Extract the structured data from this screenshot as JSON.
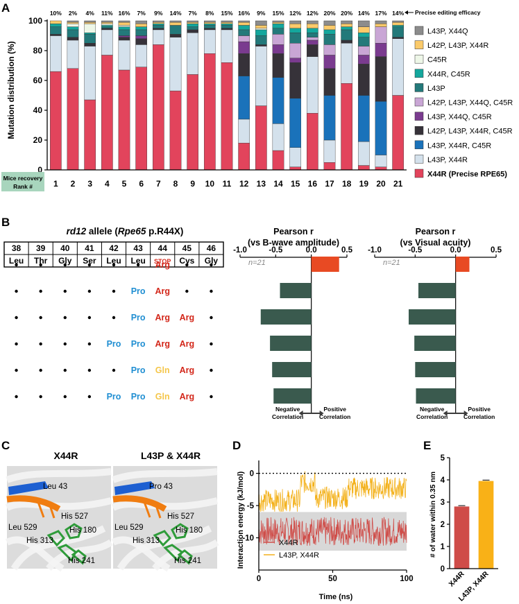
{
  "panel_letters": {
    "a": "A",
    "b": "B",
    "c": "C",
    "d": "D",
    "e": "E"
  },
  "colors": {
    "x44r": "#e2445c",
    "l43p_x44r": "#d4e1ec",
    "l43p_x44r_c45r": "#1a72ba",
    "l42p_l43p_x44r_c45r": "#363239",
    "l43p_x44q_c45r": "#7a3b8f",
    "l42p_l43p_x44q_c45r": "#c9a6d5",
    "l43p": "#23797a",
    "x44r_c45r": "#14a79d",
    "c45r": "#eef7e8",
    "l42p_l43p_x44r": "#fbca6a",
    "l43p_x44q": "#8c8c8c",
    "pos_bar": "#e84a23",
    "neg_bar": "#3a5a4e",
    "arg": "#d3271a",
    "pro": "#1f8ed2",
    "gln": "#f5c64a",
    "md_x44r": "#cf4c48",
    "md_l43p": "#f3b11b",
    "water_x44r": "#cf4c48",
    "water_l43p": "#f9b117",
    "rank_bg": "#a8d5bd"
  },
  "panelA": {
    "chart_data": {
      "type": "bar",
      "stacked": true,
      "title": "Precise editing efficacy",
      "xlabel": "Mice recovery Rank #",
      "ylabel": "Mutation distribution (%)",
      "ylim": [
        0,
        100
      ],
      "yticks": [
        "0",
        "20",
        "40",
        "60",
        "80",
        "100"
      ],
      "categories": [
        "1",
        "2",
        "3",
        "4",
        "5",
        "6",
        "7",
        "8",
        "9",
        "10",
        "11",
        "12",
        "13",
        "14",
        "15",
        "16",
        "17",
        "18",
        "19",
        "20",
        "21"
      ],
      "efficacy_labels": [
        "10%",
        "2%",
        "4%",
        "11%",
        "16%",
        "7%",
        "9%",
        "14%",
        "7%",
        "8%",
        "15%",
        "16%",
        "9%",
        "15%",
        "12%",
        "12%",
        "20%",
        "20%",
        "14%",
        "17%",
        "14%"
      ],
      "series": [
        {
          "key": "x44r",
          "name": "X44R (Precise RPE65)",
          "values": [
            66,
            68,
            47,
            77,
            67,
            69,
            84,
            53,
            64,
            78,
            72,
            18,
            43,
            13,
            2,
            38,
            5,
            58,
            3,
            2,
            50
          ]
        },
        {
          "key": "l43p_x44r",
          "name": "L43P, X44R",
          "values": [
            24,
            19,
            36,
            17,
            20,
            15,
            10,
            36,
            28,
            16,
            22,
            16,
            40,
            18,
            13,
            38,
            15,
            27,
            16,
            8,
            38
          ]
        },
        {
          "key": "l43p_x44r_c45r",
          "name": "L43P, X44R, C45R",
          "values": [
            0,
            0,
            0,
            0,
            0,
            0,
            0,
            0,
            0,
            0,
            0,
            29,
            0,
            31,
            33,
            0,
            30,
            0,
            31,
            36,
            0
          ]
        },
        {
          "key": "l42p_l43p_x44r_c45r",
          "name": "L42P, L43P, X44R, C45R",
          "values": [
            1,
            2,
            2,
            1,
            2,
            4,
            1,
            2,
            2,
            1,
            1,
            15,
            1,
            16,
            24,
            8,
            18,
            2,
            21,
            30,
            1
          ]
        },
        {
          "key": "l43p_x44q_c45r",
          "name": "L43P, X44Q, C45R",
          "values": [
            0,
            0,
            0,
            0,
            1,
            2,
            0,
            0,
            0,
            0,
            0,
            8,
            0,
            6,
            3,
            3,
            9,
            0,
            6,
            9,
            0
          ]
        },
        {
          "key": "l42p_l43p_x44q_c45r",
          "name": "L42P, L43P, X44Q, C45R",
          "values": [
            0,
            0,
            0,
            0,
            0,
            0,
            0,
            0,
            0,
            0,
            0,
            4,
            0,
            7,
            10,
            2,
            7,
            0,
            6,
            11,
            0
          ]
        },
        {
          "key": "l43p",
          "name": "L43P",
          "values": [
            5,
            5,
            6,
            1,
            4,
            4,
            2,
            6,
            2,
            2,
            2,
            4,
            6,
            4,
            7,
            3,
            7,
            7,
            6,
            0,
            7
          ]
        },
        {
          "key": "x44r_c45r",
          "name": "X44R, C45R",
          "values": [
            2,
            2,
            1,
            1,
            2,
            2,
            1,
            0,
            2,
            1,
            1,
            3,
            4,
            3,
            3,
            3,
            3,
            2,
            3,
            0,
            1
          ]
        },
        {
          "key": "c45r",
          "name": "C45R",
          "values": [
            0,
            2,
            6,
            1,
            1,
            0,
            0,
            0,
            0,
            0,
            0,
            0,
            1,
            0,
            0,
            0,
            0,
            0,
            0,
            0,
            0
          ]
        },
        {
          "key": "l42p_l43p_x44r",
          "name": "L42P, L43P, X44R",
          "values": [
            2,
            1,
            1,
            1,
            2,
            2,
            1,
            2,
            1,
            1,
            1,
            2,
            2,
            1,
            3,
            3,
            3,
            2,
            4,
            2,
            2
          ]
        },
        {
          "key": "l43p_x44q",
          "name": "L43P, X44Q",
          "values": [
            0,
            1,
            1,
            1,
            1,
            2,
            1,
            1,
            1,
            1,
            1,
            1,
            3,
            1,
            2,
            2,
            3,
            2,
            4,
            2,
            1
          ]
        }
      ],
      "legend_position": "right"
    }
  },
  "panelB": {
    "allele_title": "rd12 allele (Rpe65 p.R44X)",
    "allele_parts": {
      "italic1": "rd12",
      "plain1": " allele (",
      "italic2": "Rpe65",
      "plain2": " p.R44X)"
    },
    "positions": [
      "38",
      "39",
      "40",
      "41",
      "42",
      "43",
      "44",
      "45",
      "46"
    ],
    "residues": [
      "Leu",
      "Thr",
      "Gly",
      "Ser",
      "Leu",
      "Leu",
      "STOP",
      "Cys",
      "Gly"
    ],
    "rows": [
      [
        ".",
        ".",
        ".",
        ".",
        ".",
        ".",
        "Arg",
        ".",
        "."
      ],
      [
        ".",
        ".",
        ".",
        ".",
        ".",
        "Pro",
        "Arg",
        ".",
        "."
      ],
      [
        ".",
        ".",
        ".",
        ".",
        ".",
        "Pro",
        "Arg",
        "Arg",
        "."
      ],
      [
        ".",
        ".",
        ".",
        ".",
        "Pro",
        "Pro",
        "Arg",
        "Arg",
        "."
      ],
      [
        ".",
        ".",
        ".",
        ".",
        ".",
        "Pro",
        "Gln",
        "Arg",
        "."
      ],
      [
        ".",
        ".",
        ".",
        ".",
        "Pro",
        "Pro",
        "Gln",
        "Arg",
        "."
      ]
    ],
    "charts": [
      {
        "type": "bar",
        "orientation": "horizontal",
        "title": "Pearson r",
        "subtitle": "(vs B-wave amplitude)",
        "n_label": "n=21",
        "xlim": [
          -1,
          0.5
        ],
        "xticks": [
          "-1.0",
          "-0.5",
          "0.0",
          "0.5"
        ],
        "values": [
          0.39,
          -0.44,
          -0.71,
          -0.58,
          -0.55,
          -0.53
        ],
        "neg_label": [
          "Negative",
          "Correlation"
        ],
        "pos_label": [
          "Positive",
          "Correlation"
        ]
      },
      {
        "type": "bar",
        "orientation": "horizontal",
        "title": "Pearson r",
        "subtitle": "(vs Visual acuity)",
        "n_label": "n=21",
        "xlim": [
          -1,
          0.5
        ],
        "xticks": [
          "-1.0",
          "-0.5",
          "0.0",
          "0.5"
        ],
        "values": [
          0.17,
          -0.46,
          -0.58,
          -0.51,
          -0.5,
          -0.49
        ],
        "neg_label": [
          "Negative",
          "Correlation"
        ],
        "pos_label": [
          "Positive",
          "Correlation"
        ]
      }
    ]
  },
  "panelC": {
    "left_title": "X44R",
    "right_title": "L43P & X44R",
    "left_labels": [
      "Leu 43",
      "His 527",
      "Leu 529",
      "His 180",
      "His 313",
      "His 241"
    ],
    "right_labels": [
      "Pro 43",
      "His 527",
      "Leu 529",
      "His 180",
      "His 313",
      "His 241"
    ]
  },
  "panelD": {
    "chart_data": {
      "type": "line",
      "xlabel": "Time  (ns)",
      "ylabel": "Interaction energy (kJ/mol)",
      "xlim": [
        0,
        100
      ],
      "ylim": [
        -15,
        2
      ],
      "xticks": [
        "0",
        "50",
        "100"
      ],
      "yticks": [
        "0",
        "-5",
        "-10"
      ],
      "series": [
        {
          "name": "X44R",
          "mean": -9,
          "noise": 1.4
        },
        {
          "name": "L43P, X44R",
          "segments": [
            {
              "x": [
                0,
                28
              ],
              "mean": -4.2
            },
            {
              "x": [
                28,
                38
              ],
              "mean": -1.4
            },
            {
              "x": [
                38,
                60
              ],
              "mean": -3.8
            },
            {
              "x": [
                60,
                100
              ],
              "mean": -2.3
            }
          ],
          "noise": 1.1
        }
      ],
      "band": [
        -6,
        -12
      ]
    }
  },
  "panelE": {
    "chart_data": {
      "type": "bar",
      "ylabel": "# of water within 0.35 nm",
      "ylim": [
        0,
        5
      ],
      "yticks": [
        "0",
        "1",
        "2",
        "3",
        "4",
        "5"
      ],
      "categories": [
        "X44R",
        "L43P, X44R"
      ],
      "values": [
        2.8,
        3.95
      ],
      "errors": [
        0.04,
        0.04
      ]
    }
  }
}
